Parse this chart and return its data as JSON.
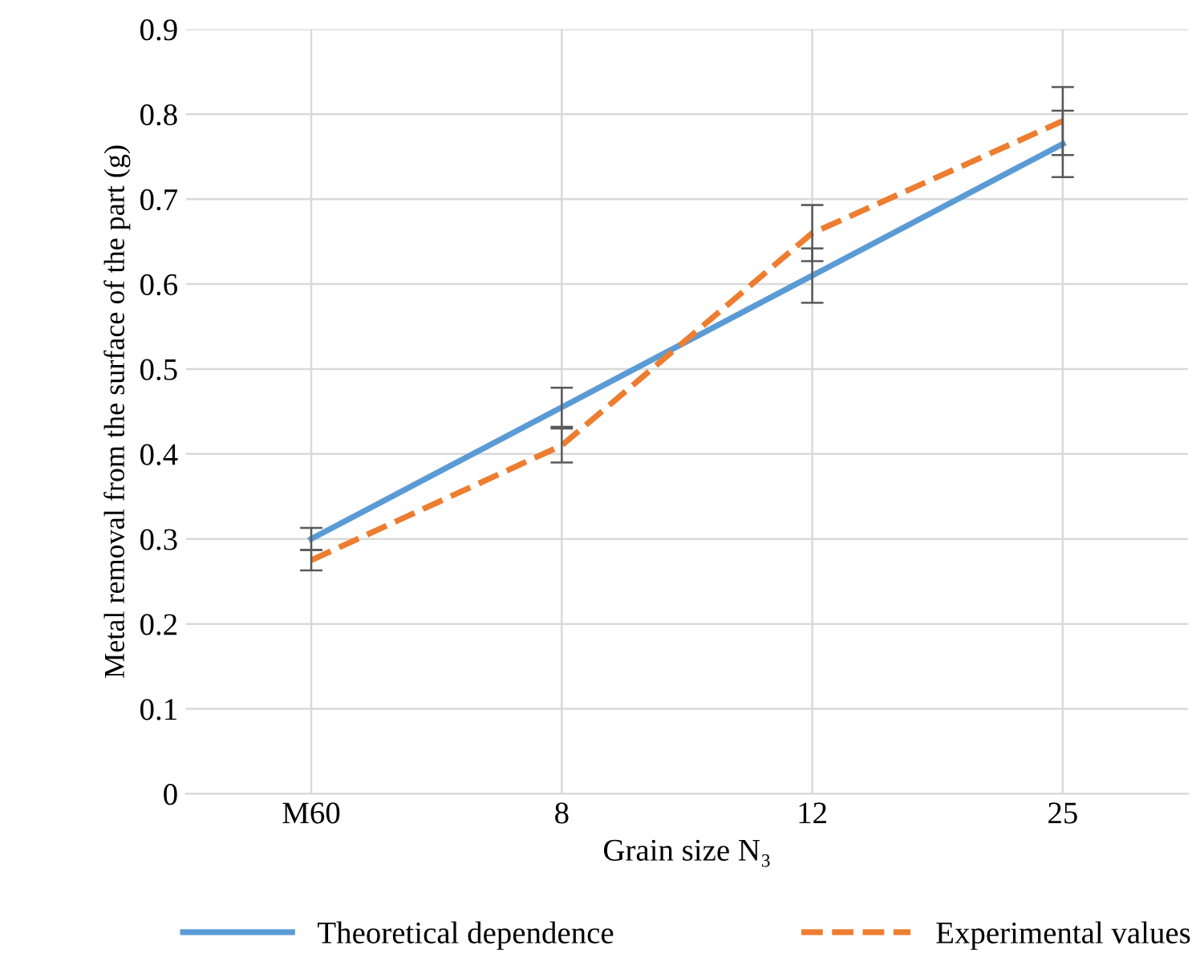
{
  "chart_data": {
    "type": "line",
    "xlabel": "Grain size N₃",
    "ylabel": "Metal removal from the surface of the part (g)",
    "categories": [
      "M60",
      "8",
      "12",
      "25"
    ],
    "series": [
      {
        "name": "Theoretical dependence",
        "color": "#5b9bd5",
        "values": [
          0.3,
          0.455,
          0.61,
          0.765
        ],
        "errors": [
          0.013,
          0.023,
          0.032,
          0.039
        ],
        "line_style": "solid"
      },
      {
        "name": "Experimental values",
        "color": "#ed7d31",
        "values": [
          0.275,
          0.41,
          0.66,
          0.792
        ],
        "errors": [
          0.012,
          0.02,
          0.033,
          0.04
        ],
        "line_style": "dashed"
      }
    ],
    "ylim": [
      0,
      0.9
    ],
    "yticks": [
      0,
      0.1,
      0.2,
      0.3,
      0.4,
      0.5,
      0.6,
      0.7,
      0.8,
      0.9
    ],
    "grid": true,
    "legend": "bottom",
    "marker": "none"
  }
}
